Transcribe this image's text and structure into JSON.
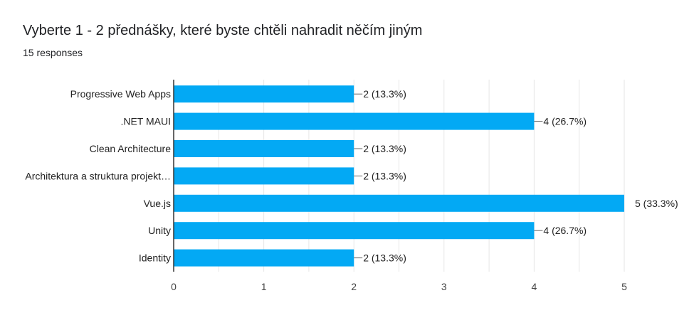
{
  "header": {
    "title": "Vyberte 1 - 2 přednášky, které byste chtěli nahradit něčím jiným",
    "responses": "15 responses"
  },
  "colors": {
    "bar": "#03a9f4",
    "grid": "#e6e6e6",
    "axis": "#333333"
  },
  "chart_data": {
    "type": "bar",
    "orientation": "horizontal",
    "categories": [
      "Progressive Web Apps",
      ".NET MAUI",
      "Clean Architecture",
      "Architektura a struktura projekt…",
      "Vue.js",
      "Unity",
      "Identity"
    ],
    "values": [
      2,
      4,
      2,
      2,
      5,
      4,
      2
    ],
    "labels": [
      "2 (13.3%)",
      "4 (26.7%)",
      "2 (13.3%)",
      "2 (13.3%)",
      "5 (33.3%)",
      "4 (26.7%)",
      "2 (13.3%)"
    ],
    "xlim": [
      0,
      5
    ],
    "xticks": [
      0,
      1,
      2,
      3,
      4,
      5
    ],
    "grid": true
  }
}
